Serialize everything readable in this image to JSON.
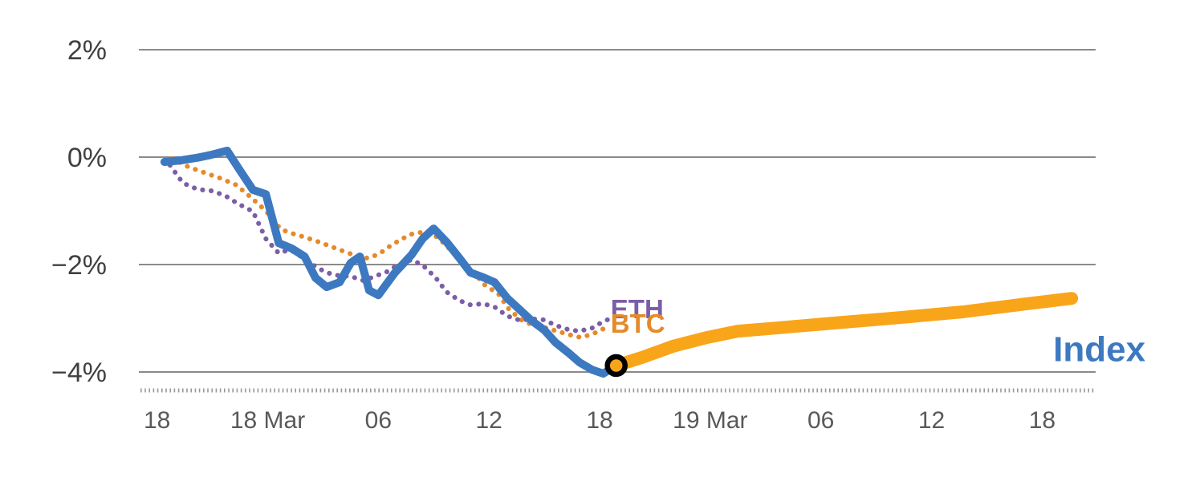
{
  "chart_data": {
    "type": "line",
    "title": "",
    "xlabel": "",
    "ylabel": "",
    "grid": "horizontal",
    "legend_position": "inline-labels",
    "x_range": [
      -0.9,
      50.9
    ],
    "y_range": [
      -4.35,
      2.35
    ],
    "x_unit": "hours since 17 Mar 18:00",
    "y_ticks": [
      {
        "value": 2,
        "label": "2%"
      },
      {
        "value": 0,
        "label": "0%"
      },
      {
        "value": -2,
        "label": "−2%"
      },
      {
        "value": -4,
        "label": "−4%"
      }
    ],
    "x_ticks": [
      {
        "value": 0,
        "label": "18"
      },
      {
        "value": 6,
        "label": "18 Mar"
      },
      {
        "value": 12,
        "label": "06"
      },
      {
        "value": 18,
        "label": "12"
      },
      {
        "value": 24,
        "label": "18"
      },
      {
        "value": 30,
        "label": "19 Mar"
      },
      {
        "value": 36,
        "label": "06"
      },
      {
        "value": 42,
        "label": "12"
      },
      {
        "value": 48,
        "label": "18"
      }
    ],
    "colors": {
      "background": "#ffffff",
      "gridline": "#8a8a8a",
      "axis_ticks": "#999999",
      "x_tick_label": "#595959",
      "y_tick_label": "#404040"
    },
    "series": [
      {
        "name": "BTC",
        "color": "#e58a2a",
        "style": "dotted",
        "width": 6,
        "points": [
          [
            0.8,
            -0.03
          ],
          [
            1.7,
            -0.18
          ],
          [
            2.5,
            -0.28
          ],
          [
            3.4,
            -0.39
          ],
          [
            4.3,
            -0.52
          ],
          [
            5.1,
            -0.75
          ],
          [
            5.9,
            -1.0
          ],
          [
            6.7,
            -1.34
          ],
          [
            7.3,
            -1.42
          ],
          [
            8.0,
            -1.49
          ],
          [
            8.7,
            -1.57
          ],
          [
            9.4,
            -1.66
          ],
          [
            10.1,
            -1.75
          ],
          [
            10.8,
            -1.84
          ],
          [
            11.4,
            -1.88
          ],
          [
            12.0,
            -1.81
          ],
          [
            12.7,
            -1.64
          ],
          [
            13.3,
            -1.52
          ],
          [
            13.9,
            -1.42
          ],
          [
            14.6,
            -1.39
          ],
          [
            15.2,
            -1.49
          ],
          [
            15.9,
            -1.72
          ],
          [
            16.5,
            -1.94
          ],
          [
            17.2,
            -2.16
          ],
          [
            17.8,
            -2.39
          ],
          [
            18.5,
            -2.54
          ],
          [
            19.1,
            -2.84
          ],
          [
            19.8,
            -3.04
          ],
          [
            20.4,
            -3.13
          ],
          [
            21.1,
            -3.18
          ],
          [
            21.7,
            -3.24
          ],
          [
            22.4,
            -3.31
          ],
          [
            23.0,
            -3.36
          ],
          [
            23.7,
            -3.28
          ],
          [
            24.3,
            -3.18
          ]
        ]
      },
      {
        "name": "ETH",
        "color": "#7b5ea7",
        "style": "dotted",
        "width": 6,
        "points": [
          [
            0.7,
            -0.15
          ],
          [
            1.4,
            -0.48
          ],
          [
            2.2,
            -0.6
          ],
          [
            3.0,
            -0.63
          ],
          [
            3.7,
            -0.72
          ],
          [
            4.4,
            -0.87
          ],
          [
            5.2,
            -1.01
          ],
          [
            5.9,
            -1.52
          ],
          [
            6.6,
            -1.79
          ],
          [
            7.2,
            -1.72
          ],
          [
            7.9,
            -1.87
          ],
          [
            8.6,
            -2.04
          ],
          [
            9.2,
            -2.15
          ],
          [
            9.9,
            -2.21
          ],
          [
            10.5,
            -2.22
          ],
          [
            11.2,
            -2.3
          ],
          [
            11.8,
            -2.22
          ],
          [
            12.5,
            -2.13
          ],
          [
            13.1,
            -2.0
          ],
          [
            13.8,
            -1.91
          ],
          [
            14.4,
            -2.01
          ],
          [
            15.1,
            -2.24
          ],
          [
            15.7,
            -2.51
          ],
          [
            16.4,
            -2.67
          ],
          [
            17.0,
            -2.75
          ],
          [
            17.7,
            -2.73
          ],
          [
            18.3,
            -2.79
          ],
          [
            19.0,
            -2.96
          ],
          [
            19.7,
            -3.04
          ],
          [
            20.3,
            -3.01
          ],
          [
            21.0,
            -3.03
          ],
          [
            21.6,
            -3.13
          ],
          [
            22.3,
            -3.21
          ],
          [
            22.9,
            -3.24
          ],
          [
            23.6,
            -3.18
          ],
          [
            24.2,
            -3.06
          ],
          [
            24.7,
            -2.99
          ]
        ]
      },
      {
        "name": "Index",
        "color": "#3d79c0",
        "style": "solid",
        "width": 10,
        "points": [
          [
            0.4,
            -0.09
          ],
          [
            1.3,
            -0.06
          ],
          [
            2.2,
            -0.01
          ],
          [
            2.9,
            0.04
          ],
          [
            3.8,
            0.12
          ],
          [
            4.5,
            -0.25
          ],
          [
            5.2,
            -0.61
          ],
          [
            5.9,
            -0.69
          ],
          [
            6.6,
            -1.6
          ],
          [
            7.3,
            -1.7
          ],
          [
            8.0,
            -1.85
          ],
          [
            8.6,
            -2.25
          ],
          [
            9.2,
            -2.42
          ],
          [
            9.9,
            -2.33
          ],
          [
            10.5,
            -1.97
          ],
          [
            11.0,
            -1.85
          ],
          [
            11.5,
            -2.48
          ],
          [
            12.0,
            -2.57
          ],
          [
            12.9,
            -2.15
          ],
          [
            13.8,
            -1.82
          ],
          [
            14.4,
            -1.52
          ],
          [
            15.0,
            -1.33
          ],
          [
            15.7,
            -1.58
          ],
          [
            16.4,
            -1.88
          ],
          [
            17.0,
            -2.15
          ],
          [
            17.7,
            -2.24
          ],
          [
            18.3,
            -2.33
          ],
          [
            19.0,
            -2.63
          ],
          [
            19.7,
            -2.85
          ],
          [
            20.3,
            -3.04
          ],
          [
            21.0,
            -3.22
          ],
          [
            21.6,
            -3.45
          ],
          [
            22.3,
            -3.64
          ],
          [
            22.9,
            -3.82
          ],
          [
            23.6,
            -3.96
          ],
          [
            24.2,
            -4.03
          ],
          [
            24.9,
            -3.88
          ]
        ]
      },
      {
        "name": "index_projection",
        "color": "#f9a51a",
        "style": "solid",
        "width": 16,
        "points": [
          [
            24.9,
            -3.88
          ],
          [
            26.3,
            -3.73
          ],
          [
            28.0,
            -3.52
          ],
          [
            29.8,
            -3.36
          ],
          [
            31.5,
            -3.24
          ],
          [
            33.3,
            -3.19
          ],
          [
            36.7,
            -3.09
          ],
          [
            40.2,
            -2.99
          ],
          [
            43.7,
            -2.88
          ],
          [
            46.7,
            -2.75
          ],
          [
            49.6,
            -2.63
          ]
        ]
      }
    ],
    "marker": {
      "x": 24.9,
      "y": -3.88,
      "radius": 11,
      "fill": "#f9a51a",
      "ring_color": "#000000",
      "ring_width": 6.5
    },
    "labels": [
      {
        "text": "ETH",
        "color": "#7b5ea7",
        "x": 24.6,
        "y": -3.0,
        "size": 33,
        "weight": 700
      },
      {
        "text": "BTC",
        "color": "#e58a2a",
        "x": 24.6,
        "y": -3.27,
        "size": 33,
        "weight": 700
      },
      {
        "text": "Index",
        "color": "#3d79c0",
        "x": 48.6,
        "y": -3.8,
        "size": 44,
        "weight": 700
      }
    ]
  }
}
